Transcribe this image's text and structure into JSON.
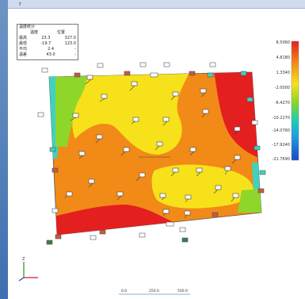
{
  "window": {
    "title": "r"
  },
  "info_box": {
    "title": "温度统计",
    "columns": [
      "温度",
      "位置"
    ],
    "rows": [
      {
        "label": "最高",
        "v1": "23.3",
        "v2": "327.0"
      },
      {
        "label": "最低",
        "v1": "-19.7",
        "v2": "123.0"
      },
      {
        "label": "平均",
        "v1": "2.4",
        "v2": "-"
      },
      {
        "label": "温差",
        "v1": "43.0",
        "v2": "-"
      }
    ]
  },
  "legend": {
    "labels": [
      "8.5060",
      "4.8180",
      "1.3340",
      "-2.0000",
      "-6.4270",
      "-10.2270",
      "-14.0760",
      "-17.9240",
      "-21.7690"
    ],
    "colors": [
      "#e41f1f",
      "#f28a17",
      "#f7e11b",
      "#86d628",
      "#1fcfae",
      "#1e9fe3",
      "#1a48c8"
    ]
  },
  "axis_triad": {
    "z": "Z"
  },
  "bottom_scale": [
    "0.0",
    "250.0",
    "500.0"
  ]
}
